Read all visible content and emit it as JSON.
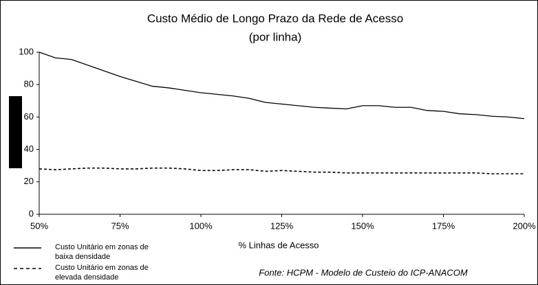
{
  "chart_data": {
    "type": "line",
    "title": "Custo Médio de Longo Prazo da Rede de Acesso",
    "subtitle": "(por linha)",
    "x_label": "% Linhas de Acesso",
    "annotation": "Fonte: HCPM - Modelo de Custeio do ICP-ANACOM",
    "x": [
      50,
      55,
      60,
      65,
      70,
      75,
      80,
      85,
      90,
      95,
      100,
      105,
      110,
      115,
      120,
      125,
      130,
      135,
      140,
      145,
      150,
      155,
      160,
      165,
      170,
      175,
      180,
      185,
      190,
      195,
      200
    ],
    "series": [
      {
        "name": "Custo Unitário em zonas de baixa densidade",
        "color": "#000000",
        "line_style": "solid",
        "values": [
          100,
          96.5,
          95.5,
          92,
          88.5,
          85,
          82,
          79,
          78,
          76.5,
          75,
          74,
          73,
          71.5,
          69,
          68,
          67,
          66,
          65.5,
          65,
          67,
          67,
          66,
          66,
          64,
          63.5,
          62,
          61.5,
          60.5,
          60,
          59
        ]
      },
      {
        "name": "Custo Unitário em zonas de elevada densidade",
        "color": "#000000",
        "line_style": "dashed",
        "values": [
          28,
          27.5,
          28,
          28.5,
          28.5,
          28,
          28,
          28.5,
          28.5,
          28,
          27,
          27,
          27.5,
          27.5,
          26.5,
          27,
          26.5,
          26,
          26,
          25.5,
          25.5,
          25.5,
          25.5,
          25.5,
          25.5,
          25.5,
          25.5,
          25.5,
          25,
          25,
          25
        ]
      }
    ],
    "xlim": [
      50,
      200
    ],
    "xticks": [
      {
        "value": 50,
        "label": "50%"
      },
      {
        "value": 75,
        "label": "75%"
      },
      {
        "value": 100,
        "label": "100%"
      },
      {
        "value": 125,
        "label": "125%"
      },
      {
        "value": 150,
        "label": "150%"
      },
      {
        "value": 175,
        "label": "175%"
      },
      {
        "value": 200,
        "label": "200%"
      }
    ],
    "ylim": [
      0,
      100
    ],
    "yticks": [
      0,
      20,
      40,
      60,
      80,
      100
    ],
    "grid": false
  }
}
